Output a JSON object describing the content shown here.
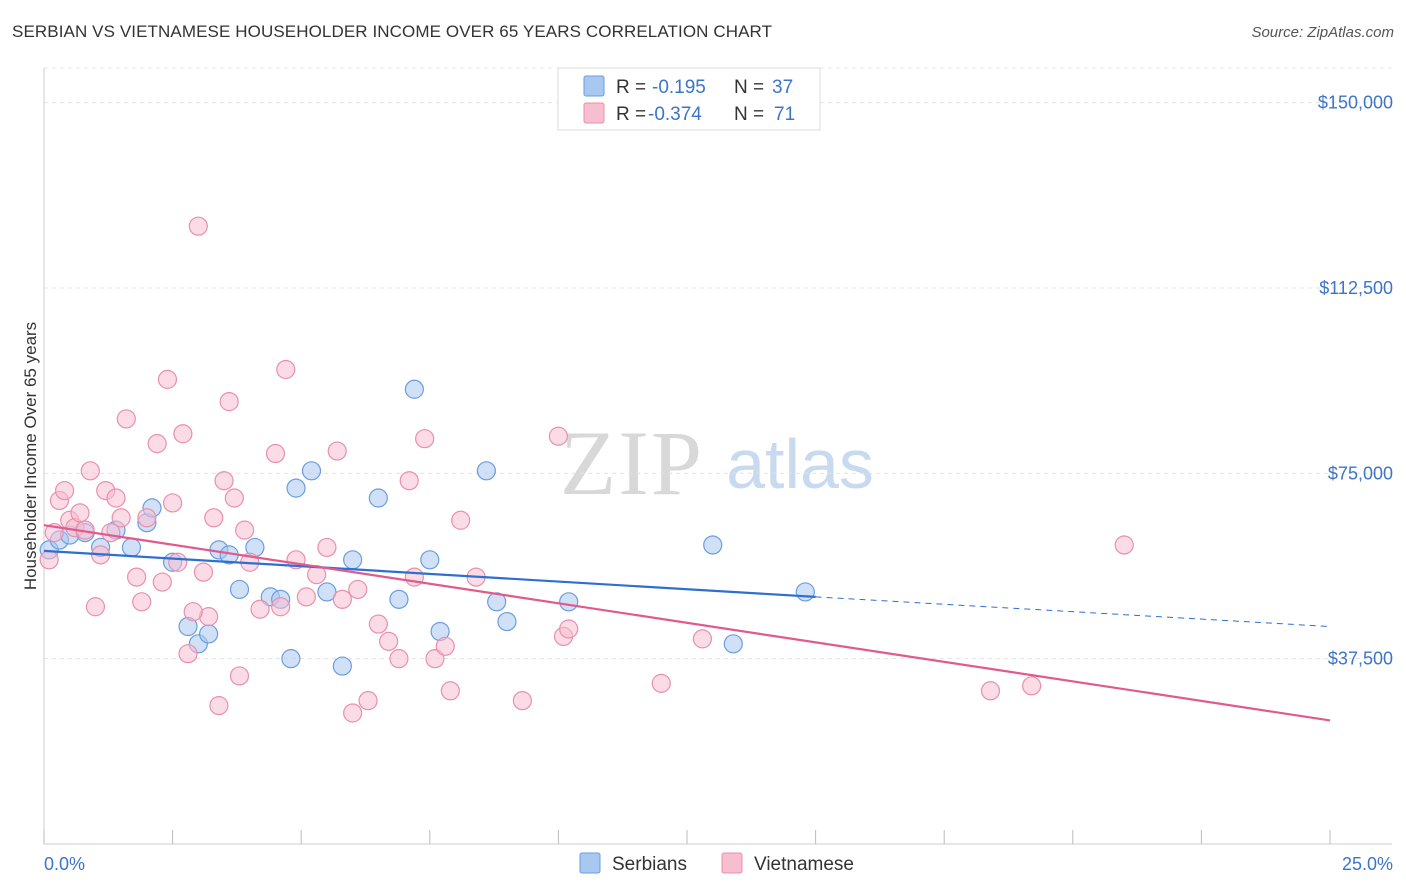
{
  "header": {
    "title": "SERBIAN VS VIETNAMESE HOUSEHOLDER INCOME OVER 65 YEARS CORRELATION CHART",
    "source": "Source: ZipAtlas.com"
  },
  "watermark": {
    "zip": "ZIP",
    "atlas": "atlas"
  },
  "legend_box": {
    "rows": [
      {
        "r_label": "R =",
        "r_value": "-0.195",
        "n_label": "N =",
        "n_value": "37",
        "color": "#a9c8f0",
        "stroke": "#6a9de0"
      },
      {
        "r_label": "R =",
        "r_value": "-0.374",
        "n_label": "N =",
        "n_value": "71",
        "color": "#f7bed0",
        "stroke": "#e890ad"
      }
    ]
  },
  "bottom_legend": [
    {
      "label": "Serbians",
      "color": "#a9c8f0",
      "stroke": "#6a9de0"
    },
    {
      "label": "Vietnamese",
      "color": "#f7bed0",
      "stroke": "#e890ad"
    }
  ],
  "chart_data": {
    "type": "scatter",
    "ylabel": "Householder Income Over 65 years",
    "xlabel": "",
    "xlim": [
      0,
      25
    ],
    "ylim": [
      0,
      157000
    ],
    "y_ticks": [
      {
        "value": 37500,
        "label": "$37,500"
      },
      {
        "value": 75000,
        "label": "$75,000"
      },
      {
        "value": 112500,
        "label": "$112,500"
      },
      {
        "value": 150000,
        "label": "$150,000"
      }
    ],
    "x_tick_labels": [
      {
        "value": 0,
        "label": "0.0%"
      },
      {
        "value": 25,
        "label": "25.0%"
      }
    ],
    "grid": true,
    "series": [
      {
        "name": "Serbians",
        "fill": "#a9c8f0",
        "stroke": "#6a9de0",
        "line_color": "#2f6fcf",
        "trend": {
          "x0": 0,
          "y0": 59300,
          "x1": 15,
          "y1": 50000,
          "dash_to_x": 25,
          "dash_to_y": 44000
        },
        "points": [
          [
            0.1,
            59500
          ],
          [
            0.3,
            61500
          ],
          [
            0.5,
            62500
          ],
          [
            0.8,
            63000
          ],
          [
            1.1,
            60000
          ],
          [
            1.4,
            63500
          ],
          [
            1.7,
            60000
          ],
          [
            2.0,
            65000
          ],
          [
            2.1,
            68000
          ],
          [
            2.5,
            57000
          ],
          [
            2.8,
            44000
          ],
          [
            3.0,
            40500
          ],
          [
            3.2,
            42500
          ],
          [
            3.4,
            59500
          ],
          [
            3.6,
            58500
          ],
          [
            3.8,
            51500
          ],
          [
            4.1,
            60000
          ],
          [
            4.4,
            50000
          ],
          [
            4.6,
            49500
          ],
          [
            4.8,
            37500
          ],
          [
            4.9,
            72000
          ],
          [
            5.2,
            75500
          ],
          [
            5.5,
            51000
          ],
          [
            5.8,
            36000
          ],
          [
            6.0,
            57500
          ],
          [
            6.5,
            70000
          ],
          [
            6.9,
            49500
          ],
          [
            7.2,
            92000
          ],
          [
            7.5,
            57500
          ],
          [
            7.7,
            43000
          ],
          [
            8.6,
            75500
          ],
          [
            8.8,
            49000
          ],
          [
            9.0,
            45000
          ],
          [
            10.2,
            49000
          ],
          [
            13.0,
            60500
          ],
          [
            13.4,
            40500
          ],
          [
            14.8,
            51000
          ]
        ]
      },
      {
        "name": "Vietnamese",
        "fill": "#f7bed0",
        "stroke": "#e890ad",
        "line_color": "#e05a8c",
        "trend": {
          "x0": 0,
          "y0": 64500,
          "x1": 25,
          "y1": 25000
        },
        "points": [
          [
            0.1,
            57500
          ],
          [
            0.2,
            63000
          ],
          [
            0.3,
            69500
          ],
          [
            0.4,
            71500
          ],
          [
            0.5,
            65500
          ],
          [
            0.6,
            64000
          ],
          [
            0.7,
            67000
          ],
          [
            0.8,
            63500
          ],
          [
            0.9,
            75500
          ],
          [
            1.0,
            48000
          ],
          [
            1.1,
            58500
          ],
          [
            1.2,
            71500
          ],
          [
            1.3,
            63000
          ],
          [
            1.5,
            66000
          ],
          [
            1.6,
            86000
          ],
          [
            1.8,
            54000
          ],
          [
            1.9,
            49000
          ],
          [
            2.0,
            66000
          ],
          [
            2.2,
            81000
          ],
          [
            2.3,
            53000
          ],
          [
            2.4,
            94000
          ],
          [
            2.5,
            69000
          ],
          [
            2.6,
            57000
          ],
          [
            2.7,
            83000
          ],
          [
            2.8,
            38500
          ],
          [
            3.0,
            125000
          ],
          [
            3.1,
            55000
          ],
          [
            3.2,
            46000
          ],
          [
            3.3,
            66000
          ],
          [
            3.4,
            28000
          ],
          [
            3.5,
            73500
          ],
          [
            3.6,
            89500
          ],
          [
            3.7,
            70000
          ],
          [
            3.8,
            34000
          ],
          [
            3.9,
            63500
          ],
          [
            4.0,
            57000
          ],
          [
            4.2,
            47500
          ],
          [
            4.5,
            79000
          ],
          [
            4.6,
            48000
          ],
          [
            4.7,
            96000
          ],
          [
            4.9,
            57500
          ],
          [
            5.1,
            50000
          ],
          [
            5.3,
            54500
          ],
          [
            5.5,
            60000
          ],
          [
            5.7,
            79500
          ],
          [
            5.8,
            49500
          ],
          [
            6.0,
            26500
          ],
          [
            6.1,
            51500
          ],
          [
            6.3,
            29000
          ],
          [
            6.5,
            44500
          ],
          [
            6.7,
            41000
          ],
          [
            6.9,
            37500
          ],
          [
            7.1,
            73500
          ],
          [
            7.2,
            54000
          ],
          [
            7.4,
            82000
          ],
          [
            7.6,
            37500
          ],
          [
            7.8,
            40000
          ],
          [
            7.9,
            31000
          ],
          [
            8.1,
            65500
          ],
          [
            8.4,
            54000
          ],
          [
            9.3,
            29000
          ],
          [
            10.0,
            82500
          ],
          [
            10.1,
            42000
          ],
          [
            10.2,
            43500
          ],
          [
            12.0,
            32500
          ],
          [
            12.8,
            41500
          ],
          [
            18.4,
            31000
          ],
          [
            19.2,
            32000
          ],
          [
            21.0,
            60500
          ],
          [
            1.4,
            70000
          ],
          [
            2.9,
            47000
          ]
        ]
      }
    ]
  }
}
